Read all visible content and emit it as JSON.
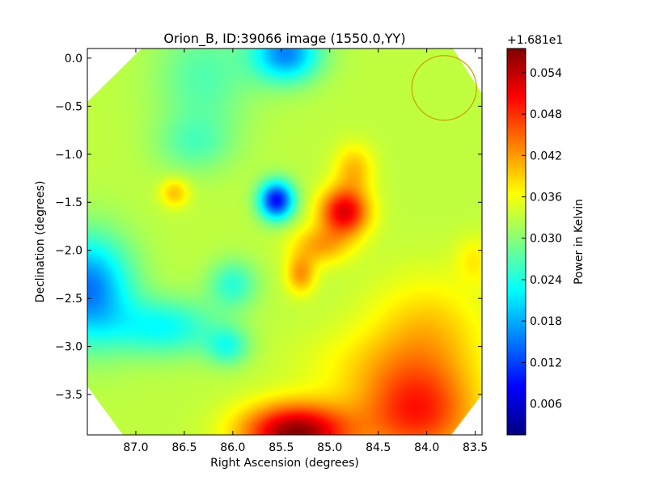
{
  "chart_data": {
    "type": "heatmap",
    "title": "Orion_B, ID:39066 image (1550.0,YY)",
    "xlabel": "Right Ascension (degrees)",
    "ylabel": "Declination (degrees)",
    "xlim": [
      87.5,
      83.43
    ],
    "ylim": [
      -3.92,
      0.1
    ],
    "x_ticks": [
      87.0,
      86.5,
      86.0,
      85.5,
      85.0,
      84.5,
      84.0,
      83.5
    ],
    "x_tick_labels": [
      "87.0",
      "86.5",
      "86.0",
      "85.5",
      "85.0",
      "84.5",
      "84.0",
      "83.5"
    ],
    "y_ticks": [
      0.0,
      -0.5,
      -1.0,
      -1.5,
      -2.0,
      -2.5,
      -3.0,
      -3.5
    ],
    "y_tick_labels": [
      "0.0",
      "−0.5",
      "−1.0",
      "−1.5",
      "−2.0",
      "−2.5",
      "−3.0",
      "−3.5"
    ],
    "grid": false,
    "colormap": "jet",
    "colorbar": {
      "label": "Power in Kelvin",
      "offset_text": "+1.681e1",
      "range": [
        0.0015,
        0.0575
      ],
      "ticks": [
        0.006,
        0.012,
        0.018,
        0.024,
        0.03,
        0.036,
        0.042,
        0.048,
        0.054
      ],
      "tick_labels": [
        "0.006",
        "0.012",
        "0.018",
        "0.024",
        "0.030",
        "0.036",
        "0.042",
        "0.048",
        "0.054"
      ]
    },
    "background_level": 0.033,
    "features": [
      {
        "ra": 85.55,
        "dec": -1.48,
        "value": 0.009,
        "kind": "minimum"
      },
      {
        "ra": 84.85,
        "dec": -1.6,
        "value": 0.052,
        "kind": "maximum"
      },
      {
        "ra": 85.35,
        "dec": -3.85,
        "value": 0.056,
        "kind": "maximum"
      },
      {
        "ra": 86.6,
        "dec": -1.4,
        "value": 0.04,
        "kind": "maximum"
      },
      {
        "ra": 85.3,
        "dec": -2.25,
        "value": 0.043,
        "kind": "maximum"
      },
      {
        "ra": 87.5,
        "dec": -2.4,
        "value": 0.015,
        "kind": "minimum"
      },
      {
        "ra": 85.45,
        "dec": 0.05,
        "value": 0.016,
        "kind": "minimum"
      },
      {
        "ra": 84.7,
        "dec": -1.1,
        "value": 0.04,
        "kind": "maximum"
      }
    ],
    "beam": {
      "ra": 83.82,
      "dec": -0.31,
      "color": "#c8a000"
    }
  }
}
